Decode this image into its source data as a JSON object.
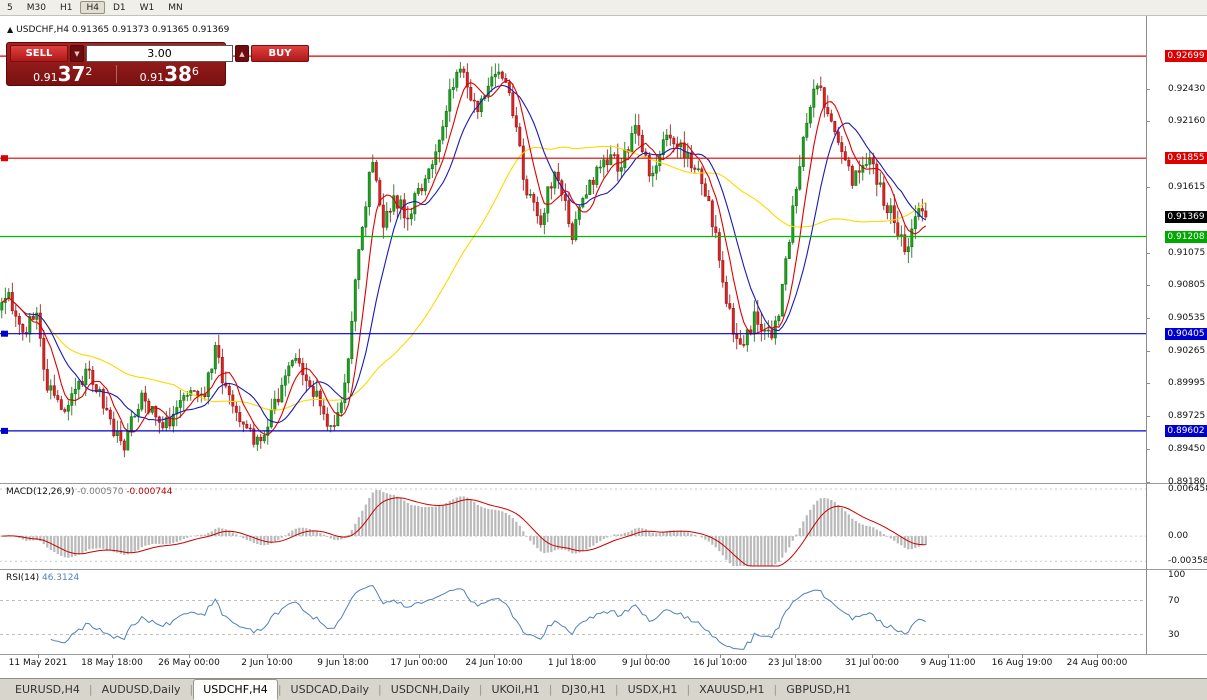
{
  "toolbar": {
    "periods": [
      "5",
      "M30",
      "H1",
      "H4",
      "D1",
      "W1",
      "MN"
    ],
    "active_period": "H4"
  },
  "symbol_line": {
    "toggle_arrow": "▲",
    "symbol": "USDCHF,H4",
    "ohlc": "0.91365 0.91373 0.91365 0.91369"
  },
  "trade_panel": {
    "sell_label": "SELL",
    "buy_label": "BUY",
    "lot_value": "3.00",
    "spin_down": "▼",
    "spin_up": "▲",
    "sell_price": {
      "prefix": "0.91",
      "big": "37",
      "sup": "2"
    },
    "buy_price": {
      "prefix": "0.91",
      "big": "38",
      "sup": "6"
    }
  },
  "indicators": {
    "macd": {
      "title": "MACD(12,26,9)",
      "main_value": "-0.000570",
      "signal_value": "-0.000744",
      "axis_labels": [
        {
          "text": "0.006458",
          "fy": 0.06
        },
        {
          "text": "0.00",
          "fy": 0.62
        },
        {
          "text": "-0.003581",
          "fy": 0.92
        }
      ]
    },
    "rsi": {
      "title": "RSI(14)",
      "value": "46.3124",
      "axis_labels": [
        100,
        70,
        30
      ],
      "levels": [
        70,
        30
      ]
    }
  },
  "price_axis": {
    "grid_labels": [
      "0.92430",
      "0.92160",
      "0.91615",
      "0.91075",
      "0.90805",
      "0.90535",
      "0.90265",
      "0.89995",
      "0.89725",
      "0.89450",
      "0.89180"
    ],
    "level_badges": [
      {
        "text": "0.92699",
        "value": 0.92699,
        "color": "#dd0000",
        "has_handle": false,
        "is_current": false
      },
      {
        "text": "0.91855",
        "value": 0.91855,
        "color": "#dd0000",
        "has_handle": true,
        "is_current": false
      },
      {
        "text": "0.91369",
        "value": 0.91369,
        "color": "#000000",
        "has_handle": false,
        "is_current": true
      },
      {
        "text": "0.91208",
        "value": 0.91208,
        "color": "#00a800",
        "has_handle": false,
        "is_current": false
      },
      {
        "text": "0.90405",
        "value": 0.90405,
        "color": "#0000cc",
        "has_handle": true,
        "is_current": false
      },
      {
        "text": "0.89602",
        "value": 0.89602,
        "color": "#0000cc",
        "has_handle": true,
        "is_current": false
      }
    ]
  },
  "chart_data": {
    "type": "candlestick",
    "symbol": "USDCHF",
    "timeframe": "H4",
    "ylim": [
      0.8918,
      0.9303
    ],
    "plot_extent": 930,
    "candle_spacing": 3.5,
    "last_close": 0.91369,
    "price_path": [
      [
        0,
        0.906
      ],
      [
        8,
        0.9076
      ],
      [
        16,
        0.9052
      ],
      [
        26,
        0.9044
      ],
      [
        36,
        0.9062
      ],
      [
        46,
        0.9002
      ],
      [
        56,
        0.8988
      ],
      [
        66,
        0.8976
      ],
      [
        76,
        0.8992
      ],
      [
        86,
        0.9008
      ],
      [
        96,
        0.8996
      ],
      [
        106,
        0.8976
      ],
      [
        116,
        0.8956
      ],
      [
        124,
        0.8949
      ],
      [
        132,
        0.897
      ],
      [
        142,
        0.8986
      ],
      [
        152,
        0.8978
      ],
      [
        162,
        0.8963
      ],
      [
        172,
        0.8971
      ],
      [
        182,
        0.8989
      ],
      [
        192,
        0.8996
      ],
      [
        202,
        0.8986
      ],
      [
        210,
        0.9006
      ],
      [
        216,
        0.9028
      ],
      [
        224,
        0.9
      ],
      [
        232,
        0.898
      ],
      [
        240,
        0.8973
      ],
      [
        250,
        0.8958
      ],
      [
        258,
        0.8949
      ],
      [
        266,
        0.8966
      ],
      [
        276,
        0.8986
      ],
      [
        286,
        0.9001
      ],
      [
        294,
        0.9021
      ],
      [
        302,
        0.9009
      ],
      [
        310,
        0.8996
      ],
      [
        318,
        0.8986
      ],
      [
        326,
        0.8969
      ],
      [
        334,
        0.8961
      ],
      [
        342,
        0.8979
      ],
      [
        348,
        0.902
      ],
      [
        354,
        0.907
      ],
      [
        360,
        0.912
      ],
      [
        366,
        0.915
      ],
      [
        372,
        0.9186
      ],
      [
        378,
        0.9151
      ],
      [
        384,
        0.9131
      ],
      [
        392,
        0.9151
      ],
      [
        400,
        0.9146
      ],
      [
        408,
        0.9133
      ],
      [
        416,
        0.9156
      ],
      [
        424,
        0.9166
      ],
      [
        432,
        0.9181
      ],
      [
        440,
        0.9206
      ],
      [
        448,
        0.9231
      ],
      [
        456,
        0.9256
      ],
      [
        462,
        0.9263
      ],
      [
        468,
        0.9241
      ],
      [
        476,
        0.9223
      ],
      [
        484,
        0.9231
      ],
      [
        492,
        0.9249
      ],
      [
        500,
        0.9259
      ],
      [
        508,
        0.9241
      ],
      [
        516,
        0.9213
      ],
      [
        524,
        0.9166
      ],
      [
        532,
        0.9151
      ],
      [
        540,
        0.9129
      ],
      [
        548,
        0.9161
      ],
      [
        556,
        0.9176
      ],
      [
        564,
        0.9156
      ],
      [
        572,
        0.9123
      ],
      [
        580,
        0.9141
      ],
      [
        588,
        0.9161
      ],
      [
        596,
        0.9173
      ],
      [
        604,
        0.9181
      ],
      [
        612,
        0.9186
      ],
      [
        620,
        0.9179
      ],
      [
        628,
        0.9196
      ],
      [
        636,
        0.9209
      ],
      [
        644,
        0.9186
      ],
      [
        652,
        0.9171
      ],
      [
        660,
        0.9191
      ],
      [
        668,
        0.9211
      ],
      [
        676,
        0.9201
      ],
      [
        684,
        0.9191
      ],
      [
        692,
        0.9183
      ],
      [
        700,
        0.9171
      ],
      [
        708,
        0.9151
      ],
      [
        716,
        0.9121
      ],
      [
        724,
        0.9081
      ],
      [
        732,
        0.9046
      ],
      [
        740,
        0.9029
      ],
      [
        748,
        0.9041
      ],
      [
        756,
        0.9056
      ],
      [
        764,
        0.9046
      ],
      [
        772,
        0.9036
      ],
      [
        780,
        0.9061
      ],
      [
        788,
        0.9111
      ],
      [
        796,
        0.9161
      ],
      [
        804,
        0.9206
      ],
      [
        812,
        0.9236
      ],
      [
        820,
        0.9241
      ],
      [
        828,
        0.9223
      ],
      [
        836,
        0.9201
      ],
      [
        844,
        0.9186
      ],
      [
        852,
        0.9166
      ],
      [
        860,
        0.9176
      ],
      [
        868,
        0.9186
      ],
      [
        876,
        0.9171
      ],
      [
        884,
        0.9151
      ],
      [
        892,
        0.9139
      ],
      [
        900,
        0.9119
      ],
      [
        906,
        0.9109
      ],
      [
        912,
        0.9126
      ],
      [
        918,
        0.9141
      ],
      [
        924,
        0.9136
      ],
      [
        930,
        0.9137
      ]
    ],
    "hlines": [
      {
        "value": 0.92699,
        "color": "#e00000"
      },
      {
        "value": 0.91855,
        "color": "#e00000"
      },
      {
        "value": 0.91208,
        "color": "#00bb00"
      },
      {
        "value": 0.90405,
        "color": "#0000d0"
      },
      {
        "value": 0.89602,
        "color": "#0000d0"
      }
    ],
    "moving_averages": [
      {
        "window": 50,
        "color": "#ffd800"
      },
      {
        "window": 14,
        "color": "#1a1ab8"
      },
      {
        "window": 7,
        "color": "#e00000"
      }
    ],
    "up_color": "#1ca11c",
    "up_stroke": "#0b660b",
    "down_color": "#dd2222",
    "down_stroke": "#8f0e0e",
    "macd_hist_color": "#b9b9b9",
    "macd_signal_color": "#cc0000",
    "rsi_color": "#4f81bd",
    "x_axis": {
      "labels": [
        "11 May 2021",
        "18 May 18:00",
        "26 May 00:00",
        "2 Jun 10:00",
        "9 Jun 18:00",
        "17 Jun 00:00",
        "24 Jun 10:00",
        "1 Jul 18:00",
        "9 Jul 00:00",
        "16 Jul 10:00",
        "23 Jul 18:00",
        "31 Jul 00:00",
        "9 Aug 11:00",
        "16 Aug 19:00",
        "24 Aug 00:00"
      ],
      "centers": [
        38,
        112,
        189,
        267,
        343,
        419,
        494,
        572,
        646,
        720,
        795,
        872,
        948,
        1022,
        1097
      ]
    }
  },
  "tabs": {
    "separator": "|",
    "items": [
      "EURUSD,H4",
      "AUDUSD,Daily",
      "USDCHF,H4",
      "USDCAD,Daily",
      "USDCNH,Daily",
      "UKOil,H1",
      "DJ30,H1",
      "USDX,H1",
      "XAUUSD,H1",
      "GBPUSD,H1"
    ],
    "active": "USDCHF,H4"
  }
}
